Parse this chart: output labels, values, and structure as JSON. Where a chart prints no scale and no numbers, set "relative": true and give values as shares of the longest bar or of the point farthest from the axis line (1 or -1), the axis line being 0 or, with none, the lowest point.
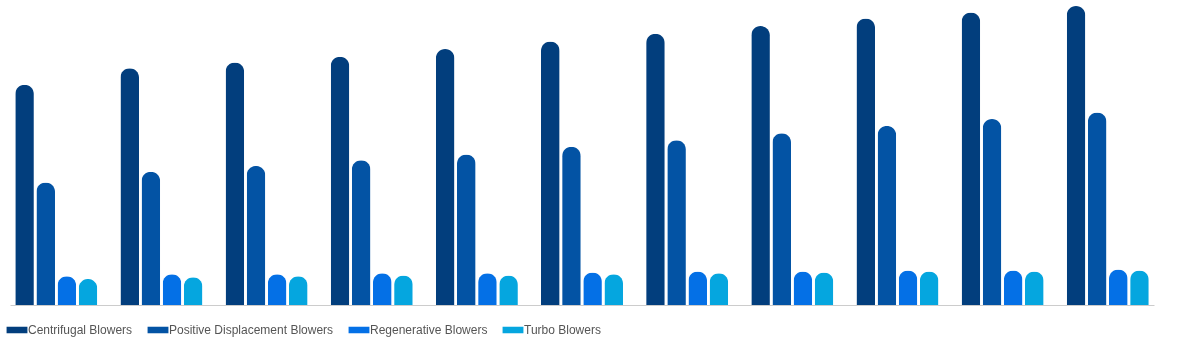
{
  "chart_data": {
    "type": "bar",
    "relative": true,
    "legend": "bottom",
    "categories": [
      null,
      null,
      null,
      null,
      null,
      null,
      null,
      null,
      null,
      null,
      null
    ],
    "series": [
      {
        "name": "Centrifugal Blowers",
        "color": "#023e7d",
        "values": [
          0.737,
          0.792,
          0.811,
          0.83,
          0.856,
          0.881,
          0.907,
          0.933,
          0.958,
          0.978,
          1
        ]
      },
      {
        "name": "Positive Displacement Blowers",
        "color": "#0353a4",
        "values": [
          0.41,
          0.446,
          0.465,
          0.484,
          0.503,
          0.529,
          0.551,
          0.574,
          0.599,
          0.622,
          0.644
        ]
      },
      {
        "name": "Regenerative Blowers",
        "color": "#0470e6",
        "values": [
          0.096,
          0.103,
          0.103,
          0.106,
          0.106,
          0.109,
          0.112,
          0.112,
          0.115,
          0.115,
          0.119
        ]
      },
      {
        "name": "Turbo Blowers",
        "color": "#05a6df",
        "values": [
          0.087,
          0.093,
          0.096,
          0.099,
          0.099,
          0.103,
          0.106,
          0.109,
          0.112,
          0.112,
          0.115
        ]
      }
    ]
  }
}
